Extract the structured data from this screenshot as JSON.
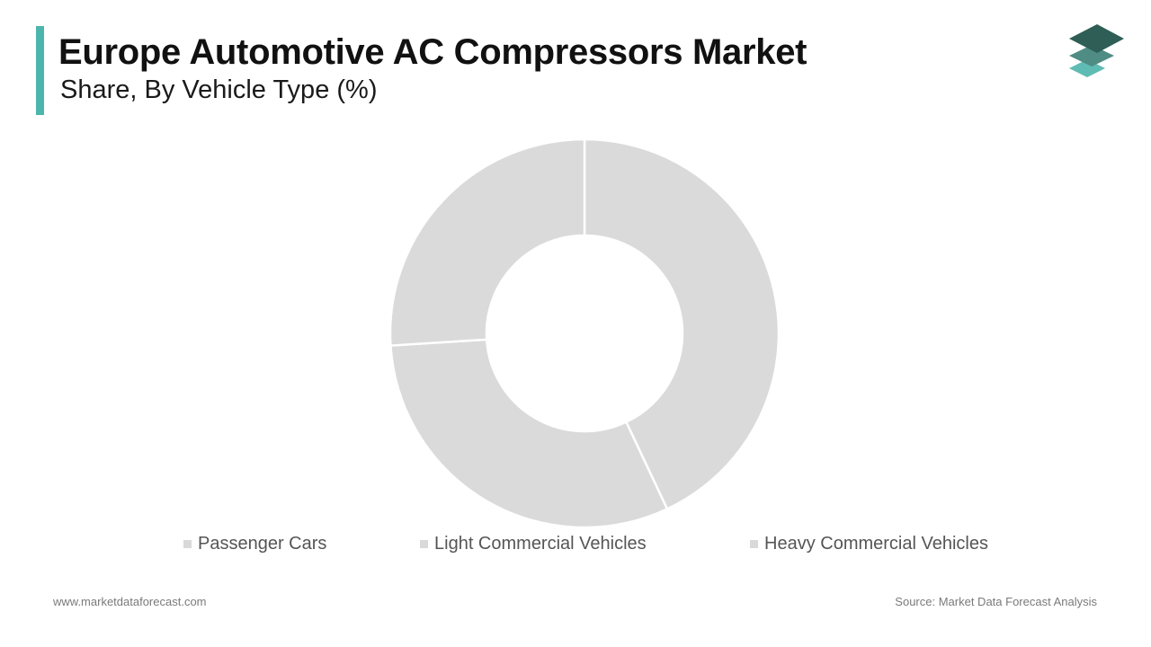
{
  "header": {
    "title": "Europe Automotive AC Compressors Market",
    "subtitle": "Share, By Vehicle Type (%)",
    "accent_color": "#4db6ac"
  },
  "logo": {
    "icon": "stacked-layers-logo",
    "colors": [
      "#2e5e56",
      "#4f8c84",
      "#5fbcb4"
    ]
  },
  "chart_data": {
    "type": "pie",
    "variant": "donut",
    "title": "Europe Automotive AC Compressors Market",
    "subtitle": "Share, By Vehicle Type (%)",
    "categories": [
      "Passenger Cars",
      "Light Commercial Vehicles",
      "Heavy Commercial Vehicles"
    ],
    "values": [
      43,
      31,
      26
    ],
    "unit": "%",
    "colors": [
      "#dadada",
      "#dadada",
      "#dadada"
    ],
    "legend_position": "bottom"
  },
  "legend": {
    "swatch_color": "#d9d9d9",
    "items": [
      "Passenger Cars",
      "Light Commercial Vehicles",
      "Heavy Commercial Vehicles"
    ]
  },
  "footer": {
    "website": "www.marketdataforecast.com",
    "source": "Source: Market Data Forecast Analysis"
  }
}
